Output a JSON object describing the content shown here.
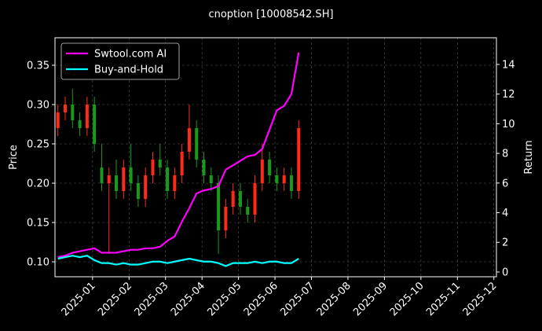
{
  "chart_data": {
    "type": "candlestick",
    "title": "cnoption [10008542.SH]",
    "ylabel": "Price",
    "y2label": "Return",
    "x": [
      -0.95,
      -0.75,
      -0.55,
      -0.35,
      -0.15,
      0.05,
      0.25,
      0.45,
      0.65,
      0.85,
      1.05,
      1.25,
      1.45,
      1.65,
      1.85,
      2.05,
      2.25,
      2.45,
      2.65,
      2.85,
      3.05,
      3.25,
      3.45,
      3.65,
      3.85,
      4.05,
      4.25,
      4.45,
      4.65,
      4.85,
      5.05,
      5.25,
      5.45,
      5.65
    ],
    "open": [
      0.27,
      0.29,
      0.3,
      0.28,
      0.27,
      0.3,
      0.22,
      0.2,
      0.21,
      0.19,
      0.22,
      0.2,
      0.18,
      0.21,
      0.23,
      0.22,
      0.19,
      0.21,
      0.24,
      0.27,
      0.23,
      0.21,
      0.2,
      0.14,
      0.17,
      0.19,
      0.17,
      0.16,
      0.2,
      0.23,
      0.21,
      0.2,
      0.21,
      0.19
    ],
    "high": [
      0.3,
      0.31,
      0.32,
      0.29,
      0.31,
      0.31,
      0.25,
      0.22,
      0.23,
      0.23,
      0.25,
      0.21,
      0.22,
      0.24,
      0.25,
      0.23,
      0.22,
      0.25,
      0.3,
      0.28,
      0.24,
      0.22,
      0.21,
      0.18,
      0.2,
      0.2,
      0.18,
      0.21,
      0.25,
      0.24,
      0.22,
      0.22,
      0.22,
      0.28
    ],
    "low": [
      0.26,
      0.28,
      0.27,
      0.26,
      0.26,
      0.24,
      0.19,
      0.11,
      0.18,
      0.18,
      0.19,
      0.17,
      0.17,
      0.2,
      0.21,
      0.18,
      0.18,
      0.2,
      0.23,
      0.22,
      0.2,
      0.19,
      0.11,
      0.13,
      0.16,
      0.16,
      0.15,
      0.15,
      0.19,
      0.2,
      0.19,
      0.19,
      0.18,
      0.18
    ],
    "close": [
      0.29,
      0.3,
      0.28,
      0.27,
      0.3,
      0.25,
      0.2,
      0.21,
      0.19,
      0.22,
      0.2,
      0.18,
      0.21,
      0.23,
      0.22,
      0.19,
      0.21,
      0.24,
      0.27,
      0.23,
      0.21,
      0.2,
      0.14,
      0.17,
      0.19,
      0.17,
      0.16,
      0.2,
      0.23,
      0.21,
      0.2,
      0.21,
      0.19,
      0.27
    ],
    "up_color": "#ff2a1a",
    "down_color": "#1a9a1a",
    "series": [
      {
        "name": "Swtool.com AI",
        "color": "#ff00ff",
        "axis": "y2",
        "values": [
          1.0,
          1.1,
          1.3,
          1.4,
          1.5,
          1.6,
          1.3,
          1.3,
          1.3,
          1.4,
          1.5,
          1.5,
          1.6,
          1.6,
          1.7,
          2.1,
          2.4,
          3.4,
          4.3,
          5.3,
          5.5,
          5.6,
          5.8,
          6.9,
          7.2,
          7.5,
          7.8,
          7.9,
          8.3,
          9.6,
          10.9,
          11.2,
          12.0,
          14.8
        ]
      },
      {
        "name": "Buy-and-Hold",
        "color": "#00ffff",
        "axis": "y2",
        "values": [
          0.9,
          1.0,
          1.1,
          1.0,
          1.1,
          0.8,
          0.6,
          0.6,
          0.5,
          0.6,
          0.5,
          0.5,
          0.6,
          0.7,
          0.7,
          0.6,
          0.7,
          0.8,
          0.9,
          0.8,
          0.7,
          0.7,
          0.6,
          0.4,
          0.6,
          0.6,
          0.6,
          0.7,
          0.6,
          0.7,
          0.7,
          0.6,
          0.6,
          0.9
        ]
      }
    ],
    "xlim": [
      -1.03,
      11.07
    ],
    "xticks": [
      {
        "value": 0,
        "label": "2025-01"
      },
      {
        "value": 1,
        "label": "2025-02"
      },
      {
        "value": 2,
        "label": "2025-03"
      },
      {
        "value": 3,
        "label": "2025-04"
      },
      {
        "value": 4,
        "label": "2025-05"
      },
      {
        "value": 5,
        "label": "2025-06"
      },
      {
        "value": 6,
        "label": "2025-07"
      },
      {
        "value": 7,
        "label": "2025-08"
      },
      {
        "value": 8,
        "label": "2025-09"
      },
      {
        "value": 9,
        "label": "2025-10"
      },
      {
        "value": 10,
        "label": "2025-11"
      },
      {
        "value": 11,
        "label": "2025-12"
      }
    ],
    "ylim": [
      0.081,
      0.385
    ],
    "yticks": [
      {
        "value": 0.1,
        "label": "0.10"
      },
      0.15,
      {
        "value": 0.2,
        "label": "0.20"
      },
      0.25,
      {
        "value": 0.3,
        "label": "0.30"
      },
      0.35
    ],
    "y2lim": [
      -0.32,
      15.8
    ],
    "y2ticks": [
      0,
      2,
      4,
      6,
      8,
      10,
      12,
      14
    ],
    "grid": true,
    "legend": "upper left"
  }
}
